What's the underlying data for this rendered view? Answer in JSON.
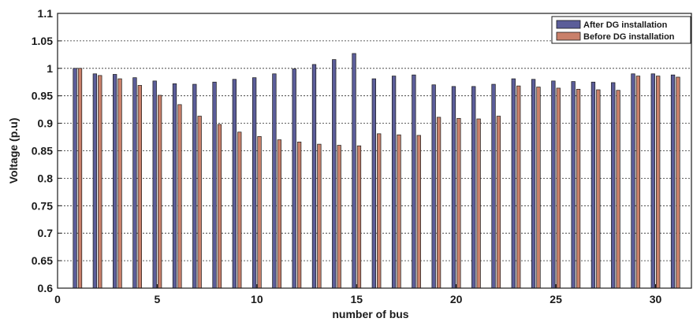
{
  "chart_data": {
    "type": "bar",
    "title": "",
    "xlabel": "number of bus",
    "ylabel": "Voltage (p.u)",
    "ylim": [
      0.6,
      1.1
    ],
    "yticks": [
      "0.6",
      "0.65",
      "0.7",
      "0.75",
      "0.8",
      "0.85",
      "0.9",
      "0.95",
      "1",
      "1.05",
      "1.1"
    ],
    "xticks": [
      "0",
      "5",
      "10",
      "15",
      "20",
      "25",
      "30"
    ],
    "grid": "horizontal dotted",
    "legend_position": "top-right",
    "categories": [
      1,
      2,
      3,
      4,
      5,
      6,
      7,
      8,
      9,
      10,
      11,
      12,
      13,
      14,
      15,
      16,
      17,
      18,
      19,
      20,
      21,
      22,
      23,
      24,
      25,
      26,
      27,
      28,
      29,
      30,
      31
    ],
    "series": [
      {
        "name": "After DG installation",
        "color": "#5b5d99",
        "values": [
          1.0,
          0.99,
          0.989,
          0.983,
          0.977,
          0.972,
          0.971,
          0.975,
          0.98,
          0.983,
          0.99,
          0.999,
          1.007,
          1.016,
          1.027,
          0.981,
          0.986,
          0.988,
          0.97,
          0.967,
          0.967,
          0.971,
          0.981,
          0.98,
          0.977,
          0.976,
          0.975,
          0.974,
          0.99,
          0.99,
          0.988
        ]
      },
      {
        "name": "Before DG installation",
        "color": "#c9806a",
        "values": [
          1.0,
          0.987,
          0.981,
          0.969,
          0.951,
          0.934,
          0.913,
          0.898,
          0.884,
          0.876,
          0.87,
          0.866,
          0.862,
          0.86,
          0.859,
          0.881,
          0.879,
          0.878,
          0.911,
          0.909,
          0.908,
          0.913,
          0.968,
          0.966,
          0.964,
          0.962,
          0.961,
          0.96,
          0.986,
          0.986,
          0.984
        ]
      }
    ]
  }
}
